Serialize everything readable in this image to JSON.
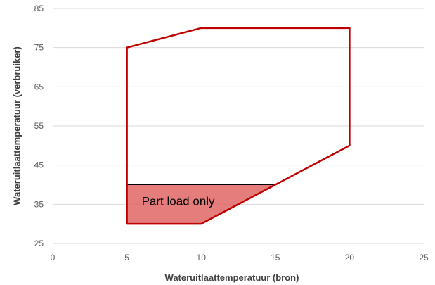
{
  "chart_data": {
    "type": "scatter",
    "xlabel": "Wateruitlaattemperatuur (bron)",
    "ylabel": "Wateruitlaattemperatuur (verbruiker)",
    "xlim": [
      0,
      25
    ],
    "ylim": [
      25,
      85
    ],
    "xticks": [
      0,
      5,
      10,
      15,
      20,
      25
    ],
    "yticks": [
      25,
      35,
      45,
      55,
      65,
      75,
      85
    ],
    "grid": "horizontal",
    "series": [
      {
        "x": [
          5,
          5,
          10,
          20,
          20,
          10,
          5
        ],
        "y": [
          30,
          75,
          80,
          80,
          50,
          30,
          30
        ],
        "color": "#C00000"
      }
    ],
    "shaded_region": {
      "label": "Part load only",
      "x": [
        5,
        15,
        10,
        5
      ],
      "y": [
        40,
        40,
        30,
        30
      ],
      "fill": "#E06666",
      "edge": "#000000"
    }
  }
}
